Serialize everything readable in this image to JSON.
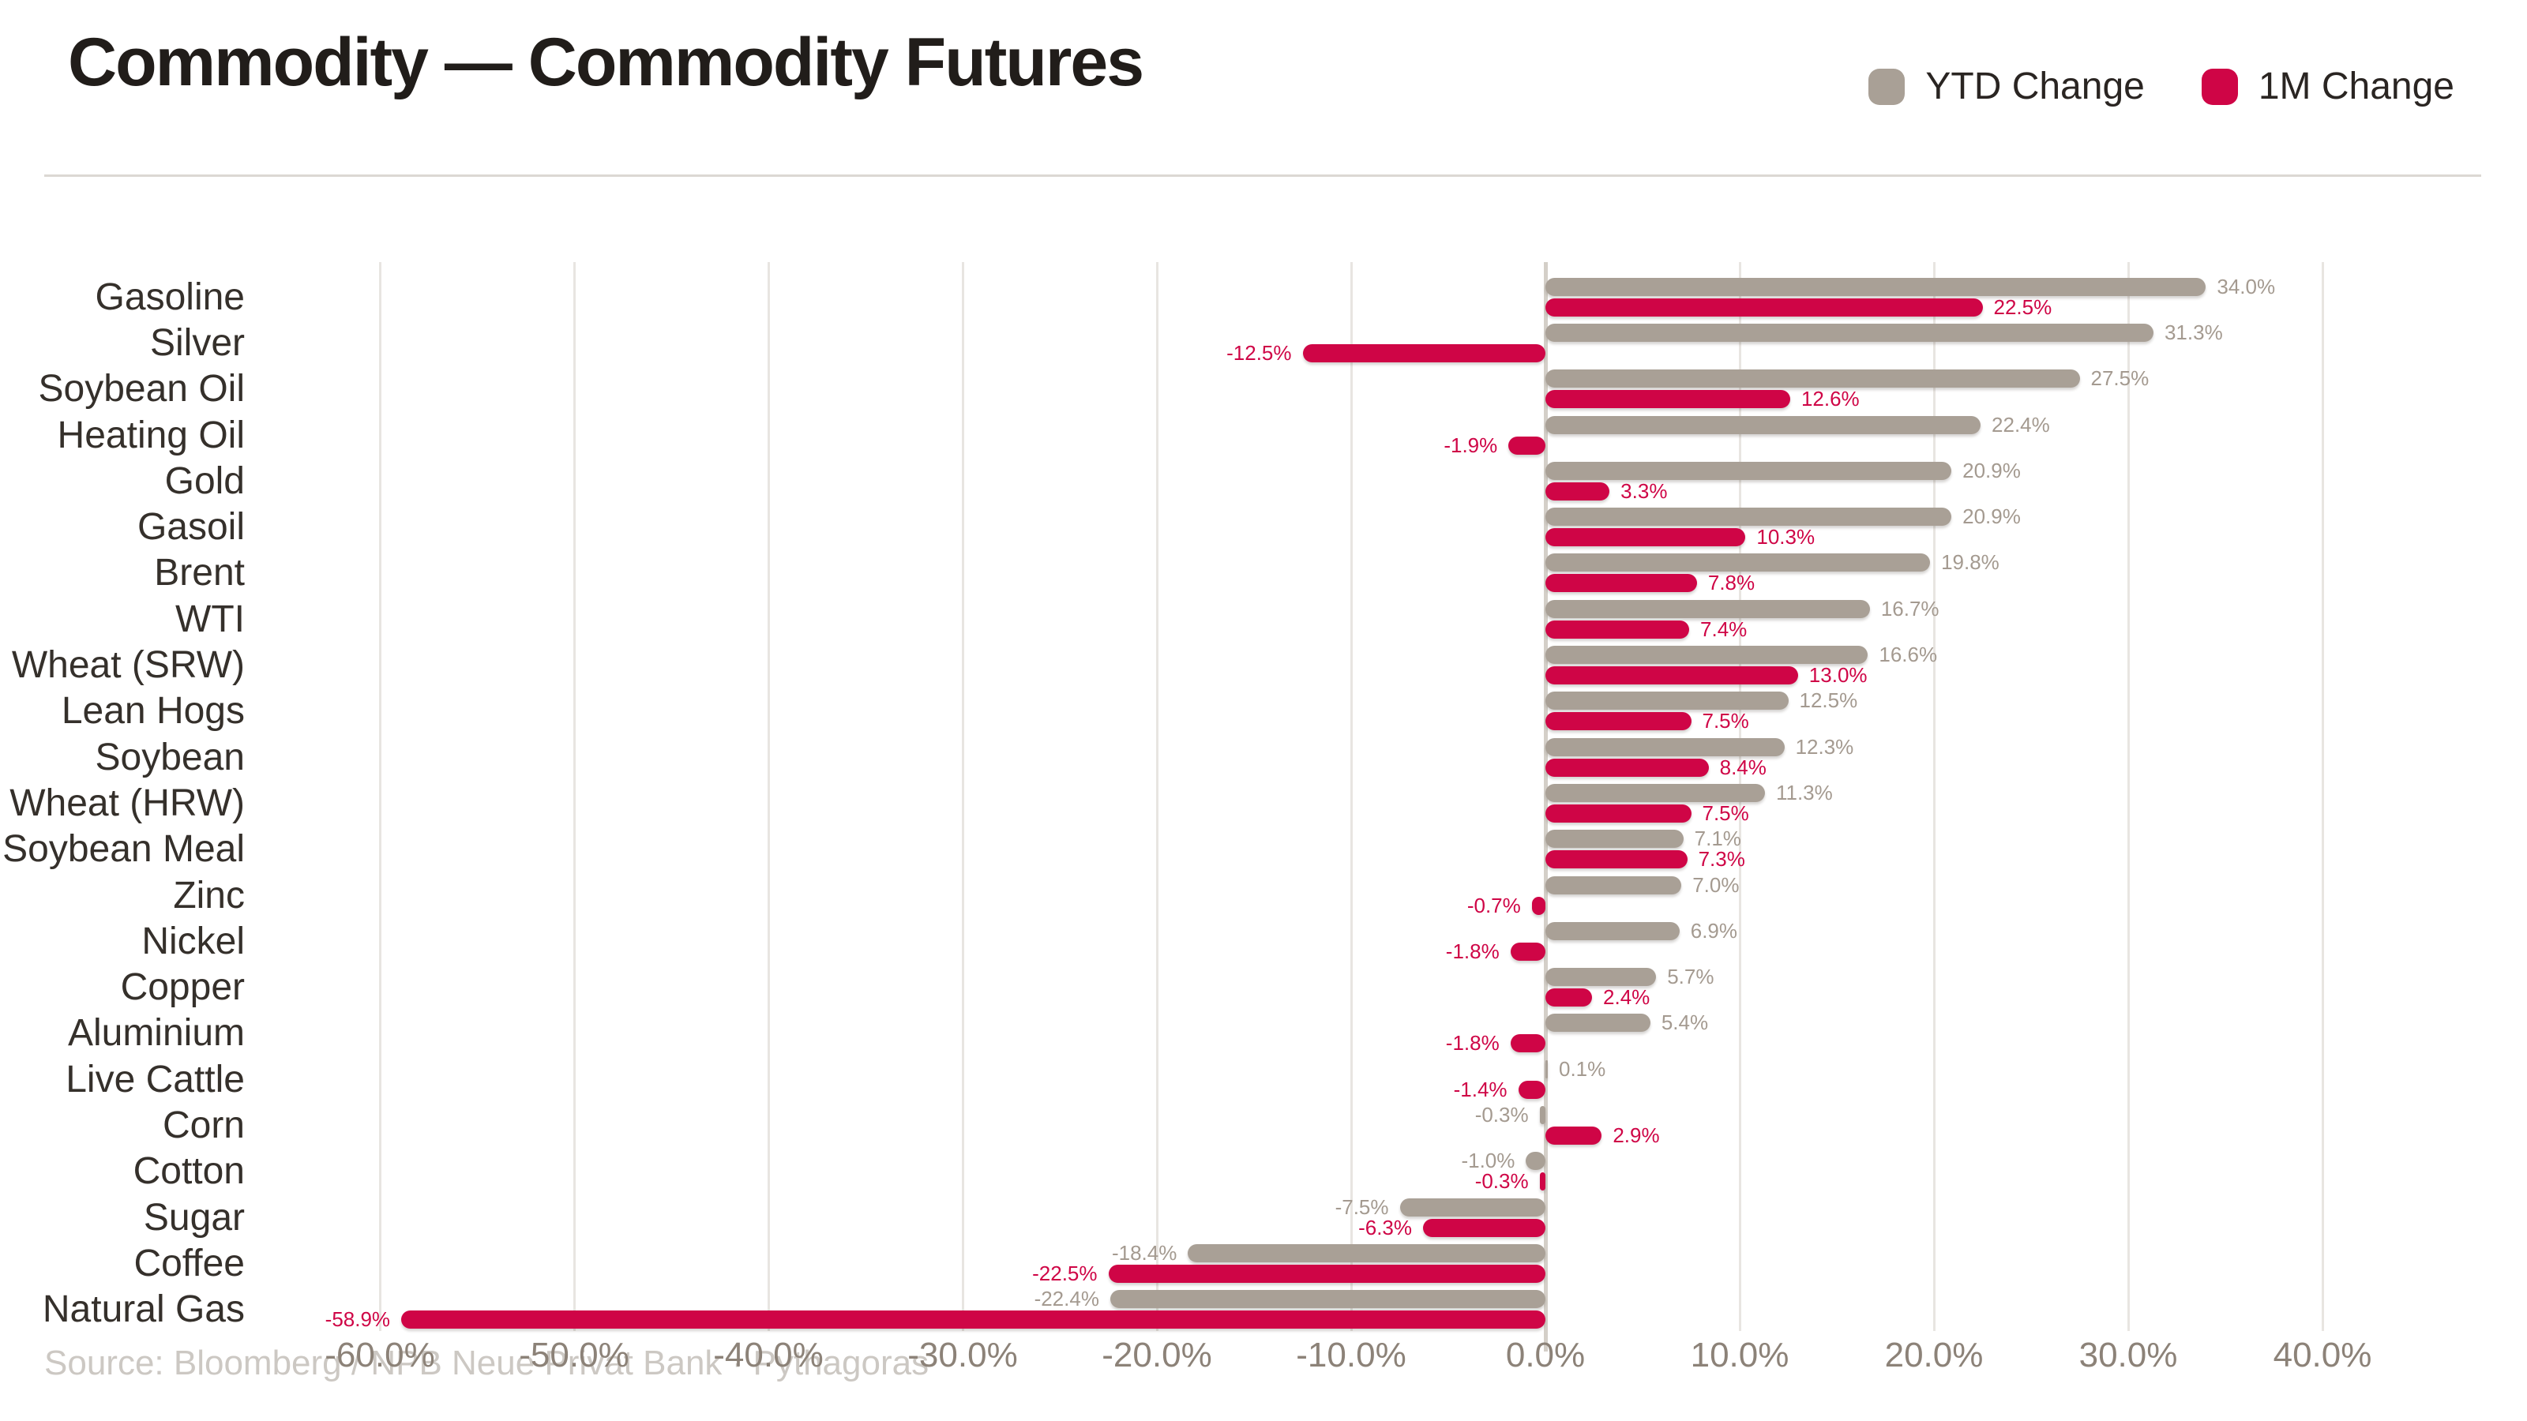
{
  "header": {
    "title": "Commodity — Commodity Futures"
  },
  "legend": [
    {
      "label": "YTD Change",
      "color": "#a9a096"
    },
    {
      "label": "1M Change",
      "color": "#cf0546"
    }
  ],
  "source": "Source: Bloomberg / NPB Neue Privat Bank · Pythagoras",
  "chart_data": {
    "type": "bar",
    "orientation": "horizontal",
    "title": "Commodity — Commodity Futures",
    "categories": [
      "Gasoline",
      "Silver",
      "Soybean Oil",
      "Heating Oil",
      "Gold",
      "Gasoil",
      "Brent",
      "WTI",
      "Wheat (SRW)",
      "Lean Hogs",
      "Soybean",
      "Wheat (HRW)",
      "Soybean Meal",
      "Zinc",
      "Nickel",
      "Copper",
      "Aluminium",
      "Live Cattle",
      "Corn",
      "Cotton",
      "Sugar",
      "Coffee",
      "Natural Gas"
    ],
    "series": [
      {
        "name": "YTD Change",
        "color": "#a9a096",
        "label_color": "#a49a90",
        "values": [
          34.0,
          31.3,
          27.5,
          22.4,
          20.9,
          20.9,
          19.8,
          16.7,
          16.6,
          12.5,
          12.3,
          11.3,
          7.1,
          7.0,
          6.9,
          5.7,
          5.4,
          0.1,
          -0.3,
          -1.0,
          -7.5,
          -18.4,
          -22.4
        ]
      },
      {
        "name": "1M Change",
        "color": "#cf0546",
        "label_color": "#cf0546",
        "values": [
          22.5,
          -12.5,
          12.6,
          -1.9,
          3.3,
          10.3,
          7.8,
          7.4,
          13.0,
          7.5,
          8.4,
          7.5,
          7.3,
          -0.7,
          -1.8,
          2.4,
          -1.8,
          -1.4,
          2.9,
          -0.3,
          -6.3,
          -22.5,
          -58.9
        ]
      }
    ],
    "value_label_format": "0.0%",
    "x_ticks": [
      -60,
      -50,
      -40,
      -30,
      -20,
      -10,
      0,
      10,
      20,
      30,
      40
    ],
    "x_tick_labels": [
      "-60.0%",
      "-50.0%",
      "-40.0%",
      "-30.0%",
      "-20.0%",
      "-10.0%",
      "0.0%",
      "10.0%",
      "20.0%",
      "30.0%",
      "40.0%"
    ],
    "xlim": [
      -65,
      48
    ],
    "grid": "vertical",
    "legend_position": "top-right"
  }
}
